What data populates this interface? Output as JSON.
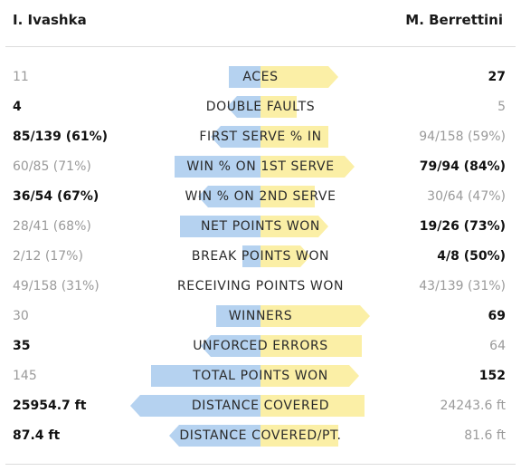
{
  "players": {
    "left": "I. Ivashka",
    "right": "M. Berrettini"
  },
  "colors": {
    "left_bar": "#b5d2f0",
    "right_bar": "#fbefa6",
    "winner_text": "#111111",
    "loser_text": "#9a9a9a"
  },
  "stats": [
    {
      "label": "ACES",
      "left": "11",
      "right": "27",
      "left_share": 0.12,
      "right_share": 0.3,
      "winner": "right"
    },
    {
      "label": "DOUBLE FAULTS",
      "left": "4",
      "right": "5",
      "left_share": 0.13,
      "right_share": 0.14,
      "winner": "left"
    },
    {
      "label": "FIRST SERVE % IN",
      "left": "85/139 (61%)",
      "right": "94/158 (59%)",
      "left_share": 0.19,
      "right_share": 0.26,
      "winner": "left"
    },
    {
      "label": "WIN % ON 1ST SERVE",
      "left": "60/85 (71%)",
      "right": "79/94 (84%)",
      "left_share": 0.33,
      "right_share": 0.36,
      "winner": "right"
    },
    {
      "label": "WIN % ON 2ND SERVE",
      "left": "36/54 (67%)",
      "right": "30/64 (47%)",
      "left_share": 0.24,
      "right_share": 0.21,
      "winner": "left"
    },
    {
      "label": "NET POINTS WON",
      "left": "28/41 (68%)",
      "right": "19/26 (73%)",
      "left_share": 0.31,
      "right_share": 0.26,
      "winner": "right"
    },
    {
      "label": "BREAK POINTS WON",
      "left": "2/12 (17%)",
      "right": "4/8 (50%)",
      "left_share": 0.07,
      "right_share": 0.19,
      "winner": "right"
    },
    {
      "label": "RECEIVING POINTS WON",
      "left": "49/158 (31%)",
      "right": "43/139 (31%)",
      "left_share": 0.0,
      "right_share": 0.0,
      "winner": "none"
    },
    {
      "label": "WINNERS",
      "left": "30",
      "right": "69",
      "left_share": 0.17,
      "right_share": 0.42,
      "winner": "right"
    },
    {
      "label": "UNFORCED ERRORS",
      "left": "35",
      "right": "64",
      "left_share": 0.23,
      "right_share": 0.39,
      "winner": "left"
    },
    {
      "label": "TOTAL POINTS WON",
      "left": "145",
      "right": "152",
      "left_share": 0.42,
      "right_share": 0.38,
      "winner": "right"
    },
    {
      "label": "DISTANCE COVERED",
      "left": "25954.7 ft",
      "right": "24243.6 ft",
      "left_share": 0.5,
      "right_share": 0.4,
      "winner": "left"
    },
    {
      "label": "DISTANCE COVERED/PT.",
      "left": "87.4 ft",
      "right": "81.6 ft",
      "left_share": 0.35,
      "right_share": 0.3,
      "winner": "left"
    }
  ]
}
